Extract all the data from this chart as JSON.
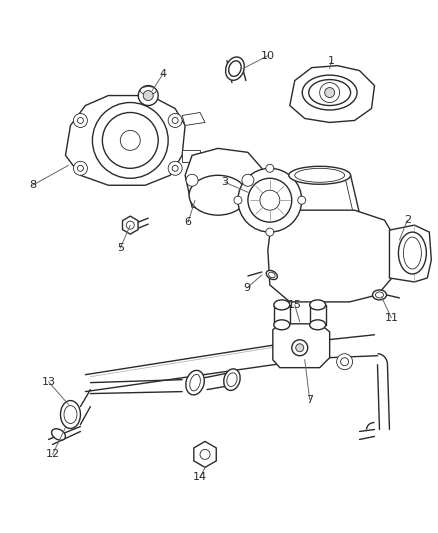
{
  "background_color": "#ffffff",
  "line_color": "#2a2a2a",
  "label_color": "#2a2a2a",
  "figsize": [
    4.38,
    5.33
  ],
  "dpi": 100,
  "lw_main": 1.0,
  "lw_thin": 0.6,
  "fc_part": "#f5f5f5",
  "fc_dark": "#d8d8d8",
  "fc_white": "#ffffff"
}
